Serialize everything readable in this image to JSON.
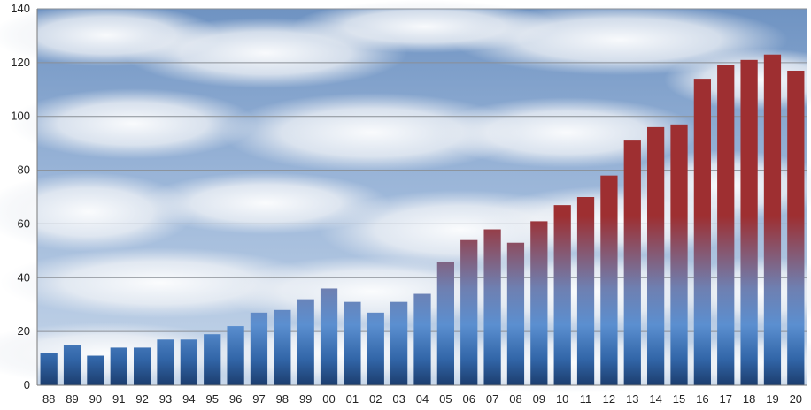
{
  "chart_data": {
    "type": "bar",
    "title": "",
    "xlabel": "",
    "ylabel": "",
    "ylim": [
      0,
      140
    ],
    "yticks": [
      0,
      20,
      40,
      60,
      80,
      100,
      120,
      140
    ],
    "grid": true,
    "legend": "none",
    "background": "sky with clouds photo",
    "categories": [
      "88",
      "89",
      "90",
      "91",
      "92",
      "93",
      "94",
      "95",
      "96",
      "97",
      "98",
      "99",
      "00",
      "01",
      "02",
      "03",
      "04",
      "05",
      "06",
      "07",
      "08",
      "09",
      "10",
      "11",
      "12",
      "13",
      "14",
      "15",
      "16",
      "17",
      "18",
      "19",
      "20"
    ],
    "values": [
      12,
      15,
      11,
      14,
      14,
      17,
      17,
      19,
      22,
      27,
      28,
      32,
      36,
      31,
      27,
      31,
      34,
      46,
      54,
      58,
      53,
      61,
      67,
      70,
      78,
      91,
      96,
      97,
      114,
      119,
      121,
      123,
      117
    ],
    "colors": {
      "bar_top": "#9e2f31",
      "bar_mid": "#5b8fd0",
      "bar_bottom": "#1c3d6e",
      "gridline": "#8a8f96",
      "axis": "#7a7a7a"
    }
  }
}
